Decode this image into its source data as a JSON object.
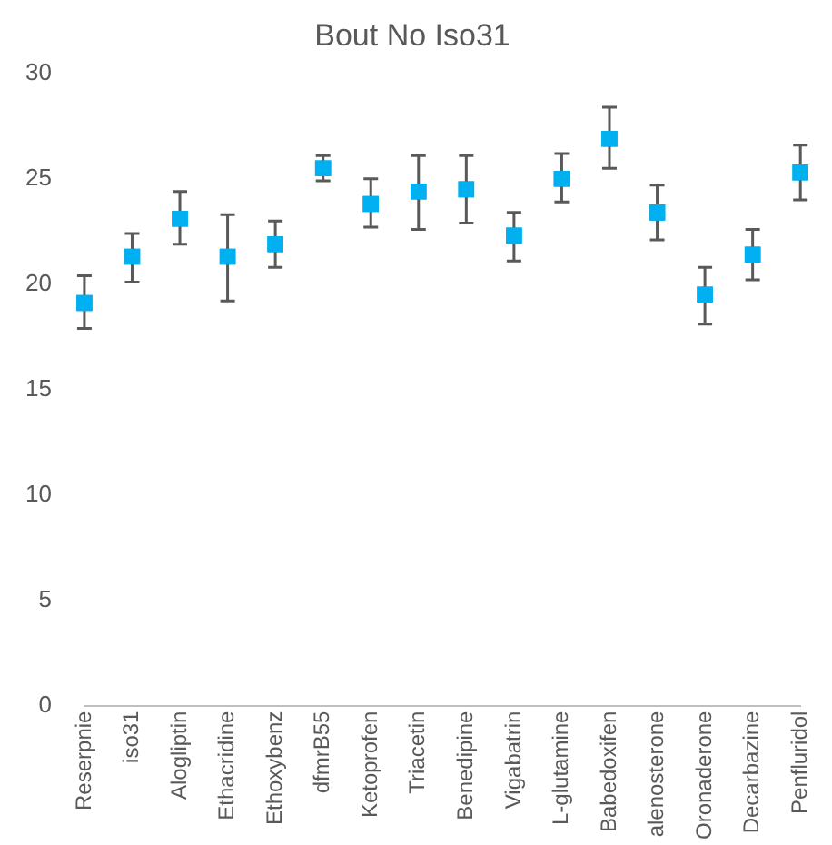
{
  "chart_data": {
    "type": "scatter",
    "title": "Bout No Iso31",
    "categories": [
      "Reserpnie",
      "iso31",
      "Alogliptin",
      "Ethacridine",
      "Ethoxybenz",
      "dfmrB55",
      "Ketoprofen",
      "Triacetin",
      "Benedipine",
      "Vigabatrin",
      "L-glutamine",
      "Babedoxifen",
      "alenosterone",
      "Oronaderone",
      "Decarbazine",
      "Penfluridol"
    ],
    "values": [
      19.1,
      21.3,
      23.1,
      21.3,
      21.9,
      25.5,
      23.8,
      24.4,
      24.5,
      22.3,
      25.0,
      26.9,
      23.4,
      19.5,
      21.4,
      25.3
    ],
    "errors": [
      [
        17.9,
        20.4
      ],
      [
        20.1,
        22.4
      ],
      [
        21.9,
        24.4
      ],
      [
        19.2,
        23.3
      ],
      [
        20.8,
        23.0
      ],
      [
        24.9,
        26.1
      ],
      [
        22.7,
        25.0
      ],
      [
        22.6,
        26.1
      ],
      [
        22.9,
        26.1
      ],
      [
        21.1,
        23.4
      ],
      [
        23.9,
        26.2
      ],
      [
        25.5,
        28.4
      ],
      [
        22.1,
        24.7
      ],
      [
        18.1,
        20.8
      ],
      [
        20.2,
        22.6
      ],
      [
        24.0,
        26.6
      ]
    ],
    "color": "#00b0f0",
    "marker": "square",
    "ylim": [
      0,
      30
    ],
    "yticks": [
      0,
      5,
      10,
      15,
      20,
      25,
      30
    ],
    "grid": false,
    "legend": false
  }
}
